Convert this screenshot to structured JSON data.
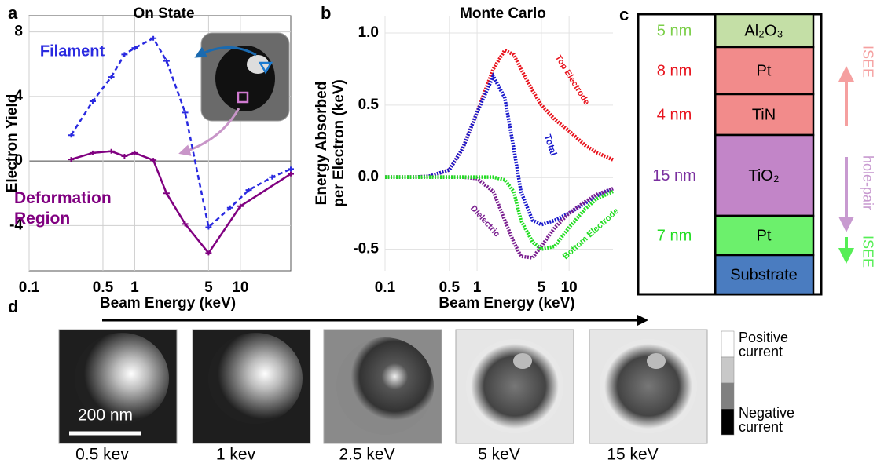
{
  "chart_data": [
    {
      "type": "line",
      "panel_label": "a",
      "title": "On State",
      "x_label": "Beam Energy (keV)",
      "y_label": "Electron Yield",
      "log_x": true,
      "grid": true,
      "xlim": [
        0.1,
        30
      ],
      "xticks": [
        0.1,
        0.5,
        1,
        5,
        10
      ],
      "ylim": [
        -6.8,
        9
      ],
      "yticks": [
        -4,
        0,
        4,
        8
      ],
      "series": [
        {
          "name": "Filament",
          "color": "#2a2ae0",
          "dashed": true,
          "markers": true,
          "x": [
            0.25,
            0.4,
            0.6,
            0.8,
            1,
            1.5,
            2,
            3,
            5,
            8,
            12,
            20,
            30
          ],
          "values": [
            1.6,
            3.7,
            5.2,
            6.6,
            7.0,
            7.6,
            6.2,
            3.0,
            -4.1,
            -2.9,
            -1.8,
            -1.0,
            -0.5
          ]
        },
        {
          "name": "Deformation Region",
          "color": "#800080",
          "dashed": false,
          "markers": true,
          "x": [
            0.25,
            0.4,
            0.6,
            0.8,
            1,
            1.5,
            2,
            3,
            5,
            10,
            30
          ],
          "values": [
            0.1,
            0.5,
            0.6,
            0.3,
            0.5,
            0.05,
            -2.0,
            -3.9,
            -5.7,
            -2.8,
            -0.8
          ]
        }
      ]
    },
    {
      "type": "line",
      "panel_label": "b",
      "title": "Monte Carlo",
      "x_label": "Beam Energy (keV)",
      "y_label": [
        "Energy Absorbed",
        "per Electron (keV)"
      ],
      "log_x": true,
      "grid": true,
      "xlim": [
        0.1,
        30
      ],
      "xticks": [
        0.1,
        0.5,
        1,
        5,
        10
      ],
      "ylim": [
        -0.65,
        1.12
      ],
      "yticks": [
        {
          "value": -0.5,
          "label": "-0.5"
        },
        {
          "value": 0,
          "label": "0.0"
        },
        0.5,
        {
          "value": 1,
          "label": "1.0"
        }
      ],
      "series": [
        {
          "name": "Top Electrode",
          "color": "#e8141e",
          "dashed": true,
          "markers": false,
          "x": [
            0.1,
            0.2,
            0.3,
            0.5,
            0.7,
            1,
            1.5,
            2,
            2.5,
            3,
            4,
            5,
            7,
            10,
            15,
            20,
            30
          ],
          "values": [
            0,
            0,
            0.005,
            0.05,
            0.2,
            0.45,
            0.75,
            0.88,
            0.85,
            0.75,
            0.6,
            0.5,
            0.4,
            0.32,
            0.22,
            0.17,
            0.12
          ]
        },
        {
          "name": "Total",
          "color": "#1a1acc",
          "dashed": true,
          "markers": false,
          "x": [
            0.1,
            0.2,
            0.3,
            0.5,
            0.7,
            1,
            1.5,
            2,
            2.5,
            3,
            4,
            5,
            7,
            10,
            15,
            20,
            30
          ],
          "values": [
            0,
            0,
            0.005,
            0.05,
            0.2,
            0.45,
            0.7,
            0.55,
            0.2,
            -0.1,
            -0.3,
            -0.33,
            -0.3,
            -0.25,
            -0.18,
            -0.13,
            -0.08
          ]
        },
        {
          "name": "Dielectric",
          "color": "#7a1f8f",
          "dashed": true,
          "markers": false,
          "x": [
            0.1,
            0.2,
            0.3,
            0.5,
            0.7,
            1,
            1.5,
            2,
            2.5,
            3,
            4,
            5,
            7,
            10,
            15,
            20,
            30
          ],
          "values": [
            0,
            0,
            0,
            0,
            0,
            -0.01,
            -0.1,
            -0.3,
            -0.45,
            -0.55,
            -0.56,
            -0.48,
            -0.35,
            -0.25,
            -0.17,
            -0.12,
            -0.08
          ]
        },
        {
          "name": "Bottom Electrode",
          "color": "#22dd22",
          "dashed": true,
          "markers": false,
          "x": [
            0.1,
            0.2,
            0.3,
            0.5,
            0.7,
            1,
            1.5,
            2,
            2.5,
            3,
            4,
            5,
            7,
            10,
            15,
            20,
            30
          ],
          "values": [
            0,
            0,
            0,
            0,
            0,
            0,
            0,
            -0.02,
            -0.1,
            -0.3,
            -0.45,
            -0.5,
            -0.48,
            -0.35,
            -0.22,
            -0.15,
            -0.1
          ]
        }
      ]
    }
  ],
  "layer_stack": {
    "panel_label": "c",
    "layers": [
      {
        "thickness": "5 nm",
        "material": "Al₂O₃",
        "color": "#c4dfa6",
        "thickness_color": "#7ccf4a"
      },
      {
        "thickness": "8 nm",
        "material": "Pt",
        "color": "#f28b8b",
        "thickness_color": "#e8141e"
      },
      {
        "thickness": "4 nm",
        "material": "TiN",
        "color": "#f28b8b",
        "thickness_color": "#e8141e"
      },
      {
        "thickness": "15 nm",
        "material": "TiO₂",
        "color": "#c285c8",
        "thickness_color": "#7a2f9f"
      },
      {
        "thickness": "7 nm",
        "material": "Pt",
        "color": "#6cf06c",
        "thickness_color": "#22dd22"
      },
      {
        "material": "Substrate",
        "color": "#4a7cc0"
      }
    ],
    "arrows": [
      {
        "label": "ISEE",
        "color": "#f5a0a0"
      },
      {
        "label": "hole-pair",
        "color": "#c89ad0"
      },
      {
        "label": "ISEE",
        "color": "#55ee55"
      }
    ]
  },
  "image_row": {
    "panel_label": "d",
    "scale_bar": "200 nm",
    "images": [
      {
        "label": "0.5 kev"
      },
      {
        "label": "1 kev"
      },
      {
        "label": "2.5 keV"
      },
      {
        "label": "5 keV"
      },
      {
        "label": "15 keV"
      }
    ],
    "colorbar": [
      "Positive current",
      "Negative current"
    ]
  }
}
